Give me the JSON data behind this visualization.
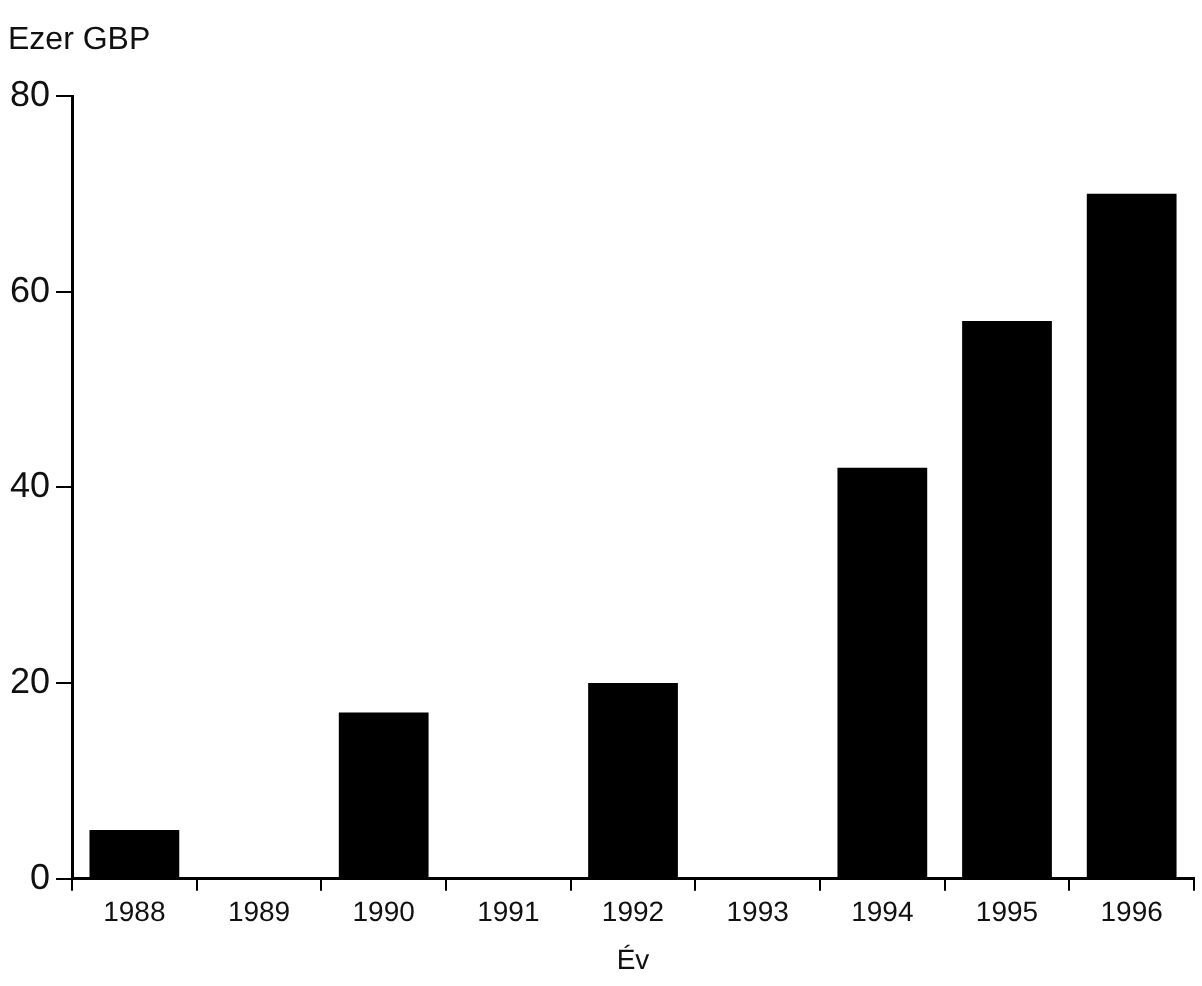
{
  "chart_data": {
    "type": "bar",
    "ylabel": "Ezer GBP",
    "xlabel": "Év",
    "categories": [
      "1988",
      "1989",
      "1990",
      "1991",
      "1992",
      "1993",
      "1994",
      "1995",
      "1996"
    ],
    "values": [
      5,
      0,
      17,
      0,
      20,
      0,
      42,
      57,
      70
    ],
    "color": "#000000",
    "ylim": [
      0,
      80
    ],
    "yticks": [
      0,
      20,
      40,
      60,
      80
    ],
    "grid": false,
    "legend": false
  }
}
